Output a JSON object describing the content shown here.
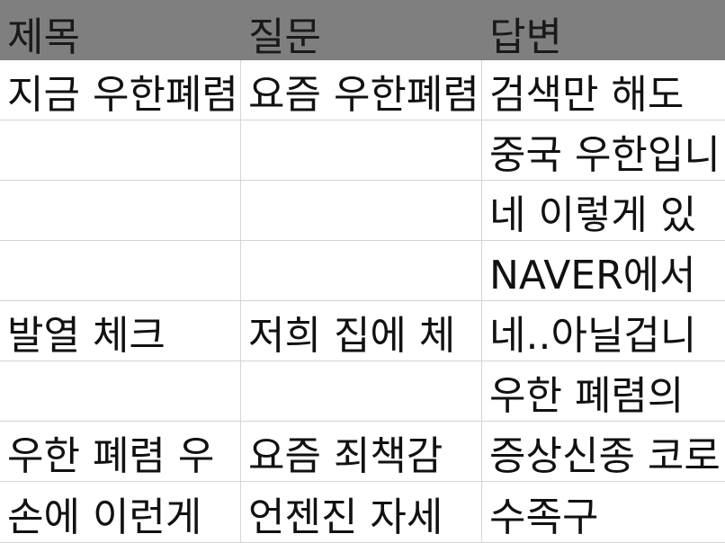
{
  "header": [
    "제목",
    "질문",
    "답변"
  ],
  "rows": [
    [
      "지금 우한폐렴",
      "요즘 우한폐렴",
      "검색만 해도"
    ],
    [
      "",
      "",
      "중국 우한입니"
    ],
    [
      "",
      "",
      "네 이렇게 있"
    ],
    [
      "",
      "",
      "NAVER에서"
    ],
    [
      "발열 체크",
      "저희 집에 체",
      "네..아닐겁니"
    ],
    [
      "",
      "",
      "우한 폐렴의"
    ],
    [
      "우한 폐렴 우",
      "요즘 죄책감",
      "증상신종 코로"
    ],
    [
      "손에 이런게",
      "언젠진 자세",
      "수족구"
    ]
  ],
  "colors": {
    "header_bg": "#7f7f7f",
    "grid_line": "#d4d4d4",
    "text": "#111111"
  }
}
